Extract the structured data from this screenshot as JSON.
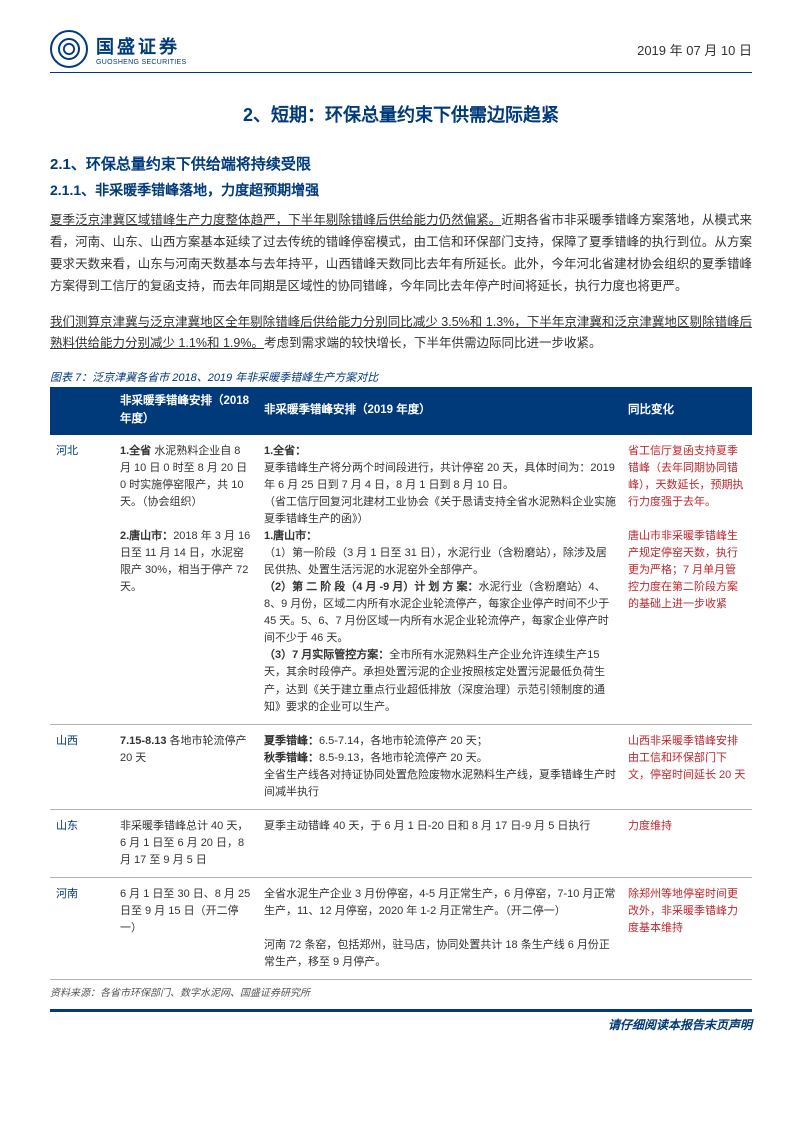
{
  "header": {
    "company": "国盛证券",
    "company_en": "GUOSHENG SECURITIES",
    "date": "2019 年 07 月 10 日"
  },
  "h1": "2、短期：环保总量约束下供需边际趋紧",
  "h2": "2.1、环保总量约束下供给端将持续受限",
  "h3": "2.1.1、非采暖季错峰落地，力度超预期增强",
  "p1_lead": "夏季泛京津冀区域错峰生产力度整体趋严，下半年剔除错峰后供给能力仍然偏紧。",
  "p1_rest": "近期各省市非采暖季错峰方案落地，从模式来看，河南、山东、山西方案基本延续了过去传统的错峰停窑模式，由工信和环保部门支持，保障了夏季错峰的执行到位。从方案要求天数来看，山东与河南天数基本与去年持平，山西错峰天数同比去年有所延长。此外，今年河北省建材协会组织的夏季错峰方案得到工信厅的复函支持，而去年同期是区域性的协同错峰，今年同比去年停产时间将延长，执行力度也将更严。",
  "p2_lead": "我们测算京津冀与泛京津冀地区全年剔除错峰后供给能力分别同比减少 3.5%和 1.3%，下半年京津冀和泛京津冀地区剔除错峰后熟料供给能力分别减少 1.1%和 1.9%。",
  "p2_rest": "考虑到需求端的较快增长，下半年供需边际同比进一步收紧。",
  "tbl_cap": "图表 7：泛京津冀各省市 2018、2019 年非采暖季错峰生产方案对比",
  "th1": "",
  "th2": "非采暖季错峰安排（2018 年度）",
  "th3": "非采暖季错峰安排（2019 年度）",
  "th4": "同比变化",
  "rows": [
    {
      "prov": "河北",
      "c2018": "1.全省 水泥熟料企业自 8 月 10 日 0 时至 8 月 20 日 0 时实施停窑限产，共 10 天。（协会组织）\n\n2.唐山市：2018 年 3 月 16 日至 11 月 14 日，水泥窑限产 30%，相当于停产 72 天。",
      "c2019_blocks": [
        {
          "title": "1.全省：",
          "body": "夏季错峰生产将分两个时间段进行，共计停窑 20 天，具体时间为：2019 年 6 月 25 日到 7 月 4 日，8 月 1 日到 8 月 10 日。\n（省工信厅回复河北建材工业协会《关于恳请支持全省水泥熟料企业实施夏季错峰生产的函》）"
        },
        {
          "title": "1.唐山市：",
          "body": "（1）第一阶段（3 月 1 日至 31 日），水泥行业（含粉磨站），除涉及居民供热、处置生活污泥的水泥窑外全部停产。\n（2）第 二 阶 段（4 月 -9 月）计 划 方 案：水泥行业（含粉磨站）4、8、9 月份，区域二内所有水泥企业轮流停产，每家企业停产时间不少于 45 天。5、6、7 月份区域一内所有水泥企业轮流停产，每家企业停产时间不少于 46 天。\n（3）7 月实际管控方案：全市所有水泥熟料生产企业允许连续生产15 天，其余时段停产。承担处置污泥的企业按照核定处置污泥最低负荷生产，达到《关于建立重点行业超低排放（深度治理）示范引领制度的通知》要求的企业可以生产。"
        }
      ],
      "change": "省工信厅复函支持夏季错峰（去年同期协同错峰），天数延长，预期执行力度强于去年。\n\n唐山市非采暖季错峰生产规定停窑天数，执行更为严格；7 月单月管控力度在第二阶段方案的基础上进一步收紧"
    },
    {
      "prov": "山西",
      "c2018": "7.15-8.13 各地市轮流停产 20 天",
      "c2019_blocks": [
        {
          "title": "",
          "body": "夏季错峰：6.5-7.14，各地市轮流停产 20 天；\n秋季错峰：8.5-9.13，各地市轮流停产 20 天。\n全省生产线各对持证协同处置危险废物水泥熟料生产线，夏季错峰生产时间减半执行"
        }
      ],
      "change": "山西非采暖季错峰安排由工信和环保部门下文，停窑时间延长 20 天"
    },
    {
      "prov": "山东",
      "c2018": "非采暖季错峰总计 40 天，6 月 1 日至 6 月 20 日，8 月 17 至 9 月 5 日",
      "c2019_blocks": [
        {
          "title": "",
          "body": "夏季主动错峰 40 天，于 6 月 1 日-20 日和 8 月 17 日-9 月 5 日执行"
        }
      ],
      "change": "力度维持"
    },
    {
      "prov": "河南",
      "c2018": "6 月 1 日至 30 日、8 月 25 日至 9 月 15 日（开二停一）",
      "c2019_blocks": [
        {
          "title": "",
          "body": "全省水泥生产企业 3 月份停窑，4-5 月正常生产，6 月停窑，7-10 月正常生产，11、12 月停窑，2020 年 1-2 月正常生产。（开二停一）\n\n河南 72 条窑，包括郑州，驻马店，协同处置共计 18 条生产线 6 月份正常生产，移至 9 月停产。"
        }
      ],
      "change": "除郑州等地停窑时间更改外，非采暖季错峰力度基本维持"
    }
  ],
  "src": "资料来源：各省市环保部门、数字水泥网、国盛证券研究所",
  "footer": {
    "disclaimer": "请仔细阅读本报告末页声明"
  }
}
